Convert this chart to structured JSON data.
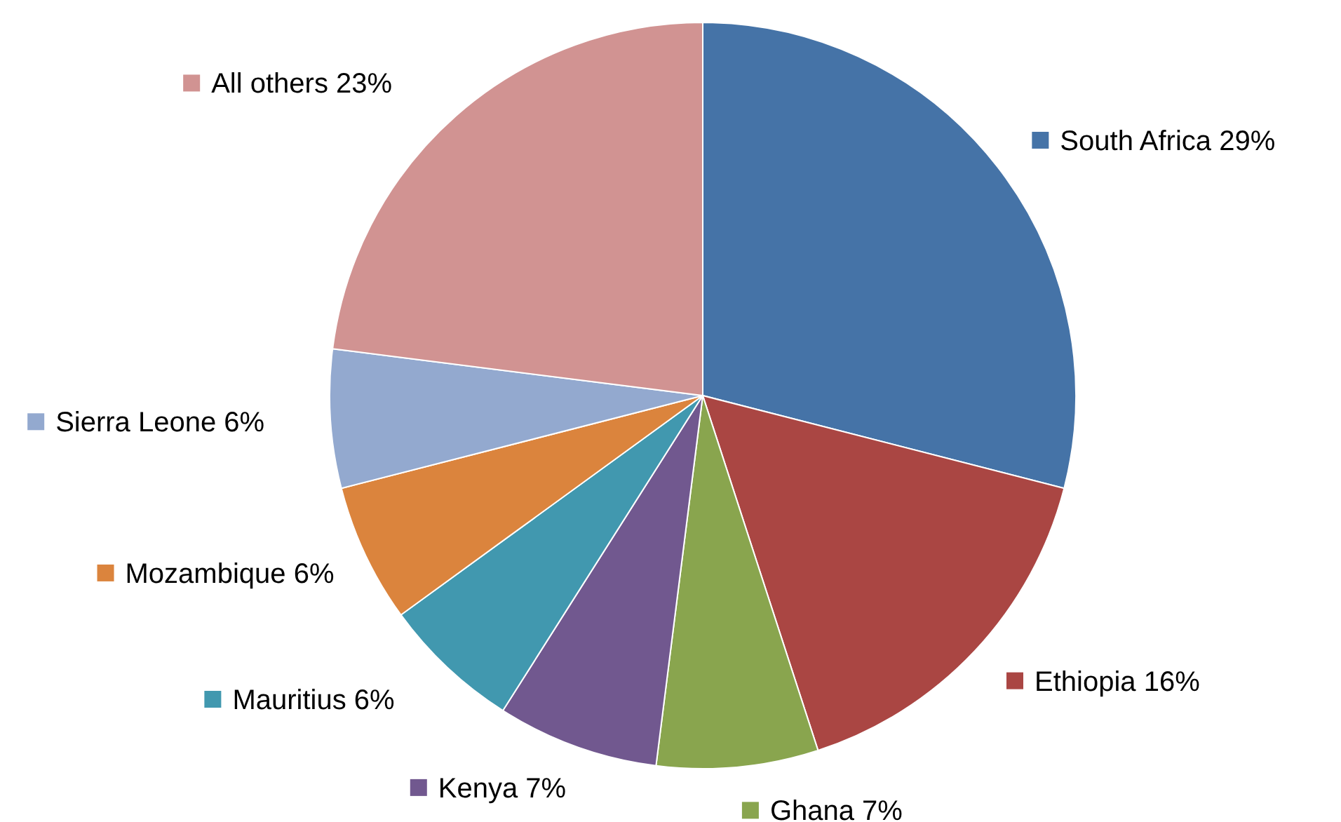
{
  "chart_data": {
    "type": "pie",
    "categories": [
      "South Africa",
      "Ethiopia",
      "Ghana",
      "Kenya",
      "Mauritius",
      "Mozambique",
      "Sierra Leone",
      "All others"
    ],
    "values": [
      29,
      16,
      7,
      7,
      6,
      6,
      6,
      23
    ],
    "value_labels": [
      "29%",
      "16%",
      "7%",
      "7%",
      "6%",
      "6%",
      "6%",
      "23%"
    ],
    "legend": "bottom left",
    "colors": [
      "#4573a7",
      "#aa4643",
      "#89a54e",
      "#71588f",
      "#4198af",
      "#db843d",
      "#93a9cf",
      "#d19392"
    ]
  }
}
